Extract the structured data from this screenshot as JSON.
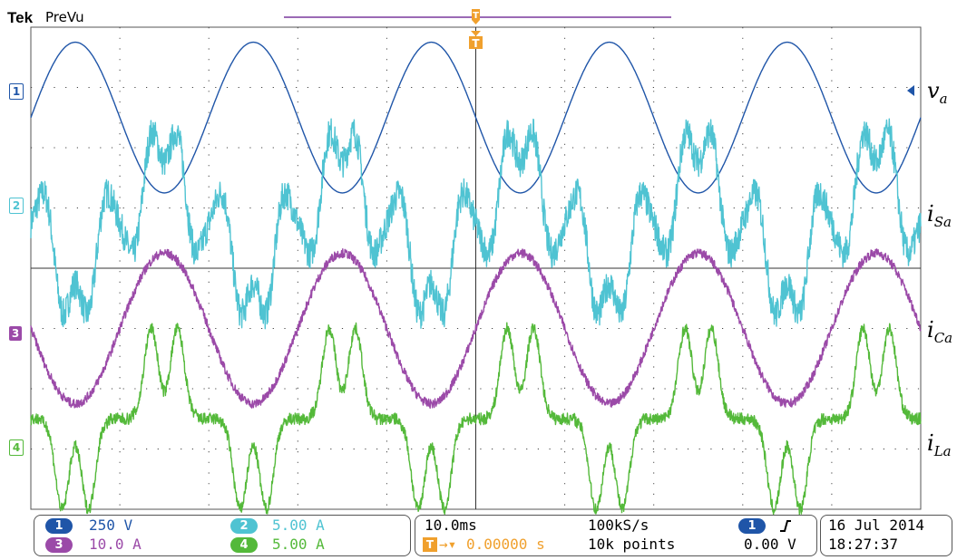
{
  "header": {
    "brand": "Tek",
    "mode": "PreVu"
  },
  "trigger": {
    "marker": "T"
  },
  "channels": [
    {
      "id": "1",
      "color": "#1f55a8",
      "scale": "250 V",
      "label_base": "v",
      "label_sub": "a"
    },
    {
      "id": "2",
      "color": "#4fc3d2",
      "scale": "5.00 A",
      "label_base": "i",
      "label_sub": "Sa"
    },
    {
      "id": "3",
      "color": "#9b4aa8",
      "scale": "10.0 A",
      "label_base": "i",
      "label_sub": "Ca"
    },
    {
      "id": "4",
      "color": "#54b93a",
      "scale": "5.00 A",
      "label_base": "i",
      "label_sub": "La"
    }
  ],
  "horizontal": {
    "time_per_div": "10.0ms",
    "sample_rate": "100kS/s",
    "trigger_position": "0.00000 s",
    "record_length": "10k points"
  },
  "trigger_info": {
    "source": "1",
    "slope_icon": "rising-edge-icon",
    "level": "0.00 V"
  },
  "datetime": {
    "date": "16 Jul  2014",
    "time": "18:27:37"
  },
  "chart_data": {
    "type": "line",
    "title": "",
    "xlabel": "",
    "ylabel": "",
    "grid": true,
    "divisions": {
      "x": 10,
      "y": 8
    },
    "xlim": [
      -0.05,
      0.05
    ],
    "x_unit": "s",
    "series": [
      {
        "name": "v_a",
        "channel": "1",
        "shape": "sine",
        "frequency_hz": 50,
        "amplitude_div": 1.25,
        "offset_div": 2.5,
        "phase_deg": 180,
        "color": "#1f55a8"
      },
      {
        "name": "i_Sa",
        "channel": "2",
        "shape": "distorted",
        "frequency_hz": 50,
        "amplitude_div": 1.8,
        "offset_div": 0.75,
        "color": "#4fc3d2"
      },
      {
        "name": "i_Ca",
        "channel": "3",
        "shape": "sine",
        "frequency_hz": 50,
        "amplitude_div": 1.25,
        "offset_div": -1.0,
        "phase_deg": 0,
        "color": "#9b4aa8"
      },
      {
        "name": "i_La",
        "channel": "4",
        "shape": "distorted",
        "frequency_hz": 50,
        "amplitude_div": 1.4,
        "offset_div": -2.5,
        "color": "#54b93a"
      }
    ]
  }
}
